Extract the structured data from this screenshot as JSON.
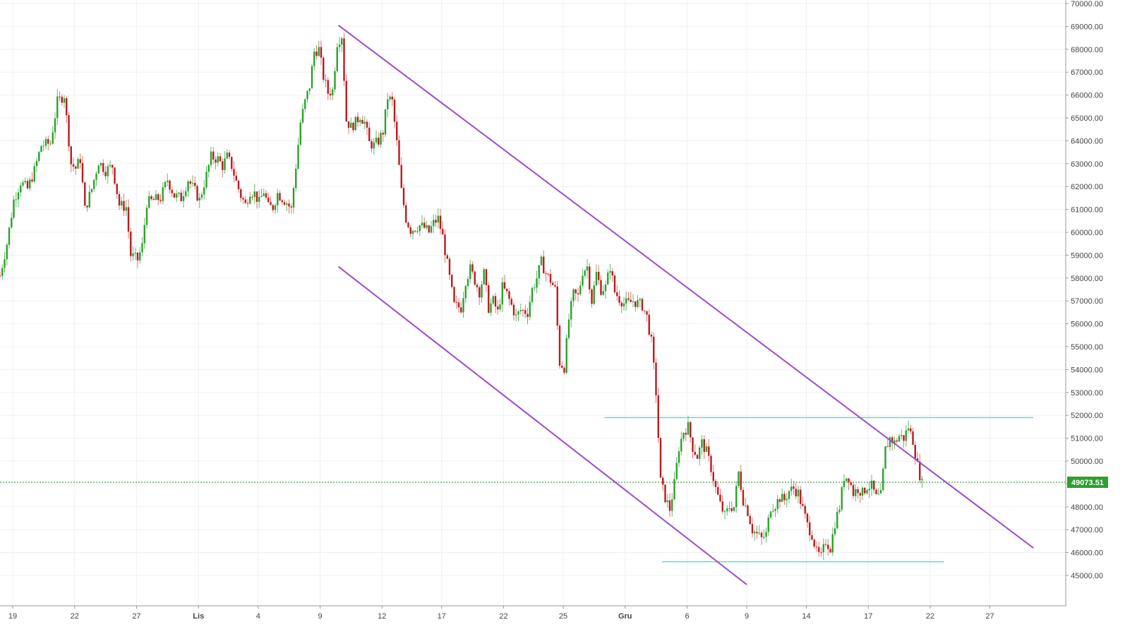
{
  "colors": {
    "up": "#2ca02c",
    "down": "#b71c1c",
    "down_wick": "#e57373",
    "up_wick": "#66bb6a",
    "grid": "#eef0f3",
    "channel": "#9b4dca",
    "level": "#40e0e0",
    "price_line": "#1b8a1b",
    "price_badge": "#2e9e2e",
    "axis_text": "#444444",
    "axis_line": "#999999"
  },
  "chart_data": {
    "type": "candlestick",
    "title": "",
    "xlabel": "",
    "ylabel": "",
    "ylim": [
      44600,
      70000
    ],
    "y_ticks": [
      "45000.00",
      "46000.00",
      "47000.00",
      "48000.00",
      "49000.00",
      "50000.00",
      "51000.00",
      "52000.00",
      "53000.00",
      "54000.00",
      "55000.00",
      "56000.00",
      "57000.00",
      "58000.00",
      "59000.00",
      "60000.00",
      "61000.00",
      "62000.00",
      "63000.00",
      "64000.00",
      "65000.00",
      "66000.00",
      "67000.00",
      "68000.00",
      "69000.00",
      "70000.00"
    ],
    "x_ticks": [
      {
        "label": "19",
        "bar": 6
      },
      {
        "label": "22",
        "bar": 33
      },
      {
        "label": "27",
        "bar": 60
      },
      {
        "label": "Lis",
        "bar": 87
      },
      {
        "label": "4",
        "bar": 113
      },
      {
        "label": "9",
        "bar": 140
      },
      {
        "label": "12",
        "bar": 167
      },
      {
        "label": "17",
        "bar": 193
      },
      {
        "label": "22",
        "bar": 220
      },
      {
        "label": "25",
        "bar": 246
      },
      {
        "label": "Gru",
        "bar": 273
      },
      {
        "label": "6",
        "bar": 300
      },
      {
        "label": "9",
        "bar": 326
      },
      {
        "label": "14",
        "bar": 352
      },
      {
        "label": "17",
        "bar": 379
      },
      {
        "label": "22",
        "bar": 406
      },
      {
        "label": "27",
        "bar": 432
      }
    ],
    "price_level_waypoints": [
      [
        0,
        58100
      ],
      [
        3,
        59500
      ],
      [
        6,
        61400
      ],
      [
        9,
        62200
      ],
      [
        12,
        61900
      ],
      [
        15,
        62700
      ],
      [
        18,
        63800
      ],
      [
        22,
        63900
      ],
      [
        25,
        65700
      ],
      [
        28,
        66000
      ],
      [
        31,
        63000
      ],
      [
        33,
        62800
      ],
      [
        35,
        63200
      ],
      [
        37,
        61000
      ],
      [
        40,
        61900
      ],
      [
        43,
        63100
      ],
      [
        46,
        62700
      ],
      [
        49,
        62900
      ],
      [
        52,
        61200
      ],
      [
        55,
        61100
      ],
      [
        57,
        59000
      ],
      [
        60,
        58800
      ],
      [
        62,
        59400
      ],
      [
        64,
        61300
      ],
      [
        67,
        61400
      ],
      [
        70,
        61500
      ],
      [
        73,
        62300
      ],
      [
        76,
        61600
      ],
      [
        79,
        61500
      ],
      [
        82,
        62300
      ],
      [
        85,
        61800
      ],
      [
        87,
        61400
      ],
      [
        90,
        62500
      ],
      [
        92,
        63300
      ],
      [
        95,
        63200
      ],
      [
        97,
        62900
      ],
      [
        99,
        63300
      ],
      [
        101,
        62900
      ],
      [
        103,
        62200
      ],
      [
        105,
        61600
      ],
      [
        107,
        61200
      ],
      [
        109,
        61800
      ],
      [
        111,
        61700
      ],
      [
        113,
        61300
      ],
      [
        115,
        61800
      ],
      [
        117,
        61100
      ],
      [
        119,
        61100
      ],
      [
        121,
        61700
      ],
      [
        123,
        61500
      ],
      [
        125,
        61300
      ],
      [
        127,
        61000
      ],
      [
        129,
        62900
      ],
      [
        131,
        64800
      ],
      [
        133,
        65700
      ],
      [
        135,
        66400
      ],
      [
        137,
        67900
      ],
      [
        139,
        68000
      ],
      [
        141,
        66800
      ],
      [
        143,
        66100
      ],
      [
        145,
        66200
      ],
      [
        147,
        68300
      ],
      [
        149,
        68600
      ],
      [
        151,
        64900
      ],
      [
        153,
        64600
      ],
      [
        155,
        64800
      ],
      [
        157,
        65100
      ],
      [
        159,
        64800
      ],
      [
        161,
        63900
      ],
      [
        163,
        63800
      ],
      [
        165,
        64000
      ],
      [
        167,
        64400
      ],
      [
        169,
        65900
      ],
      [
        171,
        65700
      ],
      [
        173,
        63900
      ],
      [
        175,
        61800
      ],
      [
        177,
        60600
      ],
      [
        179,
        60100
      ],
      [
        181,
        60200
      ],
      [
        183,
        60300
      ],
      [
        185,
        60200
      ],
      [
        187,
        60000
      ],
      [
        189,
        60400
      ],
      [
        191,
        60600
      ],
      [
        193,
        59800
      ],
      [
        196,
        58000
      ],
      [
        198,
        56800
      ],
      [
        201,
        56700
      ],
      [
        203,
        57900
      ],
      [
        205,
        58400
      ],
      [
        207,
        57900
      ],
      [
        209,
        57400
      ],
      [
        211,
        58200
      ],
      [
        213,
        56700
      ],
      [
        215,
        57000
      ],
      [
        217,
        56500
      ],
      [
        219,
        57600
      ],
      [
        221,
        57300
      ],
      [
        223,
        56800
      ],
      [
        225,
        56300
      ],
      [
        227,
        56600
      ],
      [
        230,
        56500
      ],
      [
        232,
        57500
      ],
      [
        234,
        58000
      ],
      [
        236,
        58700
      ],
      [
        238,
        58200
      ],
      [
        240,
        57900
      ],
      [
        242,
        57500
      ],
      [
        244,
        54300
      ],
      [
        246,
        54100
      ],
      [
        248,
        56200
      ],
      [
        250,
        57300
      ],
      [
        252,
        57200
      ],
      [
        254,
        58300
      ],
      [
        256,
        58500
      ],
      [
        258,
        57000
      ],
      [
        260,
        58200
      ],
      [
        262,
        57500
      ],
      [
        264,
        57600
      ],
      [
        266,
        58500
      ],
      [
        268,
        57400
      ],
      [
        270,
        57100
      ],
      [
        272,
        56900
      ],
      [
        274,
        56900
      ],
      [
        276,
        57000
      ],
      [
        278,
        56900
      ],
      [
        280,
        56800
      ],
      [
        282,
        56300
      ],
      [
        284,
        55200
      ],
      [
        286,
        53000
      ],
      [
        288,
        49100
      ],
      [
        290,
        48400
      ],
      [
        292,
        47900
      ],
      [
        294,
        49000
      ],
      [
        296,
        50600
      ],
      [
        298,
        51300
      ],
      [
        300,
        51500
      ],
      [
        302,
        50600
      ],
      [
        304,
        50200
      ],
      [
        306,
        50800
      ],
      [
        308,
        50400
      ],
      [
        310,
        49700
      ],
      [
        312,
        48800
      ],
      [
        314,
        48100
      ],
      [
        316,
        47600
      ],
      [
        318,
        48000
      ],
      [
        320,
        48000
      ],
      [
        322,
        49500
      ],
      [
        324,
        48300
      ],
      [
        326,
        47800
      ],
      [
        328,
        47000
      ],
      [
        330,
        46800
      ],
      [
        332,
        46600
      ],
      [
        334,
        46800
      ],
      [
        336,
        48000
      ],
      [
        338,
        48100
      ],
      [
        340,
        48400
      ],
      [
        342,
        48300
      ],
      [
        344,
        48700
      ],
      [
        346,
        48800
      ],
      [
        348,
        48600
      ],
      [
        350,
        47900
      ],
      [
        352,
        47200
      ],
      [
        354,
        46800
      ],
      [
        356,
        46000
      ],
      [
        358,
        45800
      ],
      [
        360,
        46500
      ],
      [
        362,
        46200
      ],
      [
        364,
        47300
      ],
      [
        366,
        48000
      ],
      [
        368,
        49300
      ],
      [
        370,
        49300
      ],
      [
        372,
        48600
      ],
      [
        374,
        48800
      ],
      [
        376,
        48600
      ],
      [
        378,
        48900
      ],
      [
        380,
        48900
      ],
      [
        382,
        48400
      ],
      [
        384,
        48500
      ],
      [
        386,
        50500
      ],
      [
        388,
        51000
      ],
      [
        390,
        50800
      ],
      [
        392,
        51100
      ],
      [
        394,
        51000
      ],
      [
        396,
        51500
      ],
      [
        398,
        50900
      ],
      [
        400,
        49800
      ],
      [
        402,
        49000
      ]
    ],
    "candles": {
      "count": 403,
      "first_bar_visible_offset": 0,
      "current_price": "49073.51"
    },
    "channel_upper": {
      "from": {
        "bar": 148,
        "price": 69050
      },
      "to": {
        "bar": 451,
        "price": 46200
      }
    },
    "channel_lower": {
      "from": {
        "bar": 148,
        "price": 58500
      },
      "to": {
        "bar": 326,
        "price": 44600
      }
    },
    "resistance_level": {
      "from_bar": 264,
      "to_bar": 451,
      "price": 51900
    },
    "support_level": {
      "from_bar": 289,
      "to_bar": 412,
      "price": 45600
    },
    "current_price_line": {
      "price": 49073.51
    }
  }
}
